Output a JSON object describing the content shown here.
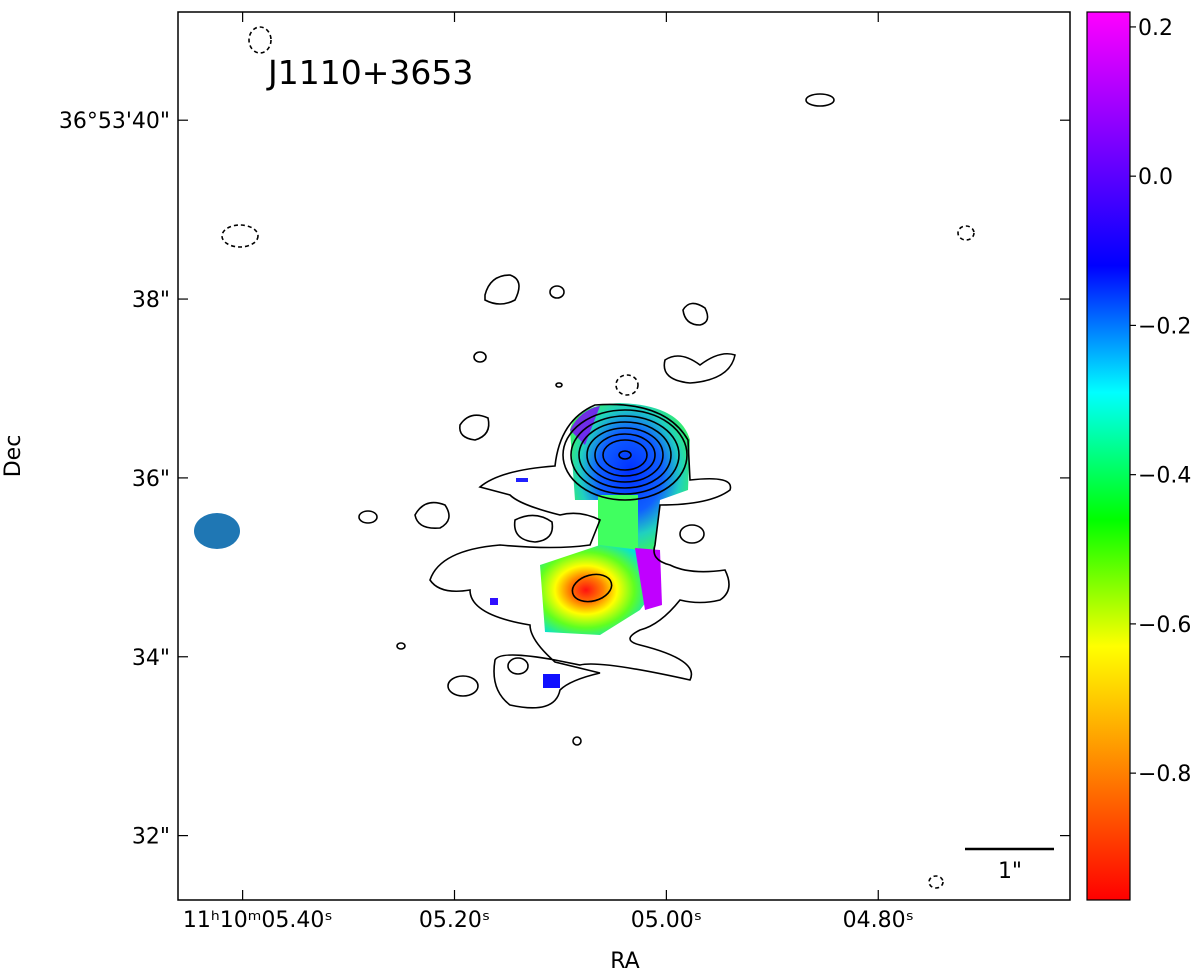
{
  "chart_data": {
    "type": "image",
    "title": "J1110+3653",
    "xlabel": "RA",
    "ylabel": "Dec",
    "xlim": [
      5.461,
      4.619
    ],
    "xticks": [
      {
        "value": 5.4,
        "label": "11ʰ10ᵐ05.40ˢ"
      },
      {
        "value": 5.2,
        "label": "05.20ˢ"
      },
      {
        "value": 5.0,
        "label": "05.00ˢ"
      },
      {
        "value": 4.8,
        "label": "04.80ˢ"
      }
    ],
    "ylim": [
      31.28,
      41.21
    ],
    "yticks": [
      {
        "value": 40,
        "label": "36°53'40\""
      },
      {
        "value": 38,
        "label": "38\""
      },
      {
        "value": 36,
        "label": "36\""
      },
      {
        "value": 34,
        "label": "34\""
      },
      {
        "value": 32,
        "label": "32\""
      }
    ],
    "colorbar": {
      "clim": [
        -0.97,
        0.22
      ],
      "ticks": [
        0.2,
        {
          "value": 0,
          "label": "0.0"
        },
        {
          "value": -0.2,
          "label": "−0.2"
        },
        {
          "value": -0.4,
          "label": "−0.4"
        },
        {
          "value": -0.6,
          "label": "−0.6"
        },
        {
          "value": -0.8,
          "label": "−0.8"
        }
      ],
      "colormap": [
        "#ff0000",
        "#ff8000",
        "#ffff00",
        "#00ff00",
        "#00ffff",
        "#0000ff",
        "#8000ff",
        "#ff00ff"
      ]
    },
    "scalebar_label": "1\""
  }
}
